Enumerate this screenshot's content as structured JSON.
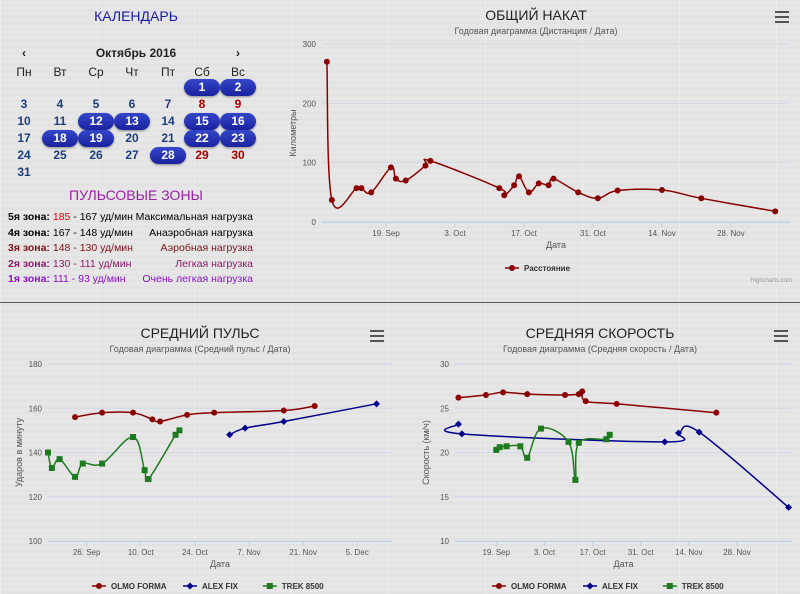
{
  "calendar": {
    "title": "КАЛЕНДАРЬ",
    "month": "Октябрь 2016",
    "prev": "‹",
    "next": "›",
    "weekdays": [
      "Пн",
      "Вт",
      "Ср",
      "Чт",
      "Пт",
      "Сб",
      "Вс"
    ],
    "weeks": [
      [
        "",
        "",
        "",
        "",
        "",
        "1",
        "2"
      ],
      [
        "3",
        "4",
        "5",
        "6",
        "7",
        "8",
        "9"
      ],
      [
        "10",
        "11",
        "12",
        "13",
        "14",
        "15",
        "16"
      ],
      [
        "17",
        "18",
        "19",
        "20",
        "21",
        "22",
        "23"
      ],
      [
        "24",
        "25",
        "26",
        "27",
        "28",
        "29",
        "30"
      ],
      [
        "31",
        "",
        "",
        "",
        "",
        "",
        ""
      ]
    ],
    "active_days": [
      "1",
      "2",
      "12",
      "13",
      "15",
      "16",
      "18",
      "19",
      "22",
      "23",
      "28"
    ]
  },
  "zones": {
    "title": "ПУЛЬСОВЫЕ ЗОНЫ",
    "items": [
      {
        "label": "5я зона:",
        "hi": "185",
        "lo": "167 уд/мин",
        "desc": "Максимальная нагрузка",
        "color": "#000000",
        "hi_color": "#e00000"
      },
      {
        "label": "4я зона:",
        "hi": "167",
        "lo": "148 уд/мин",
        "desc": "Анаэробная нагрузка",
        "color": "#000000",
        "hi_color": "#000000"
      },
      {
        "label": "3я зона:",
        "hi": "148",
        "lo": "130 уд/мин",
        "desc": "Аэробная нагрузка",
        "color": "#7a1020",
        "hi_color": "#7a1020"
      },
      {
        "label": "2я зона:",
        "hi": "130",
        "lo": "111 уд/мин",
        "desc": "Легкая нагрузка",
        "color": "#8a1a6a",
        "hi_color": "#8a1a6a"
      },
      {
        "label": "1я зона:",
        "hi": "111",
        "lo": "93 уд/мин",
        "desc": "Очень легкая нагрузка",
        "color": "#8a10c0",
        "hi_color": "#8a10c0"
      }
    ]
  },
  "credits": "Highcharts.com",
  "chart_data": [
    {
      "id": "total",
      "type": "line",
      "title": "ОБЩИЙ НАКАТ",
      "subtitle": "Годовая диаграмма (Дистанция / Дата)",
      "xlabel": "Дата",
      "ylabel": "Километры",
      "ylim": [
        0,
        300
      ],
      "yticks": [
        0,
        100,
        200,
        300
      ],
      "xlim": [
        "2016-09-06",
        "2016-12-10"
      ],
      "xticks": [
        {
          "date": "2016-09-19",
          "label": "19. Sep"
        },
        {
          "date": "2016-10-03",
          "label": "3. Oct"
        },
        {
          "date": "2016-10-17",
          "label": "17. Oct"
        },
        {
          "date": "2016-10-31",
          "label": "31. Oct"
        },
        {
          "date": "2016-11-14",
          "label": "14. Nov"
        },
        {
          "date": "2016-11-28",
          "label": "28. Nov"
        }
      ],
      "grid": true,
      "legend": "bottom-center",
      "series": [
        {
          "name": "Расстояние",
          "color": "#8b0000",
          "points": [
            [
              "2016-09-07",
              270
            ],
            [
              "2016-09-08",
              37
            ],
            [
              "2016-09-13",
              57
            ],
            [
              "2016-09-14",
              57
            ],
            [
              "2016-09-16",
              50
            ],
            [
              "2016-09-20",
              92
            ],
            [
              "2016-09-21",
              73
            ],
            [
              "2016-09-23",
              70
            ],
            [
              "2016-09-27",
              95
            ],
            [
              "2016-09-28",
              103
            ],
            [
              "2016-10-12",
              57
            ],
            [
              "2016-10-13",
              45
            ],
            [
              "2016-10-15",
              62
            ],
            [
              "2016-10-16",
              77
            ],
            [
              "2016-10-18",
              50
            ],
            [
              "2016-10-20",
              65
            ],
            [
              "2016-10-22",
              62
            ],
            [
              "2016-10-23",
              73
            ],
            [
              "2016-10-28",
              50
            ],
            [
              "2016-11-01",
              40
            ],
            [
              "2016-11-05",
              53
            ],
            [
              "2016-11-14",
              54
            ],
            [
              "2016-11-22",
              40
            ],
            [
              "2016-12-07",
              18
            ]
          ]
        }
      ]
    },
    {
      "id": "pulse",
      "type": "line",
      "title": "СРЕДНИЙ ПУЛЬС",
      "subtitle": "Годовая диаграмма (Средний пульс / Дата)",
      "xlabel": "Дата",
      "ylabel": "Ударов в минуту",
      "ylim": [
        100,
        180
      ],
      "yticks": [
        100,
        120,
        140,
        160,
        180
      ],
      "xlim": [
        "2016-09-16",
        "2016-12-14"
      ],
      "xticks": [
        {
          "date": "2016-09-26",
          "label": "26. Sep"
        },
        {
          "date": "2016-10-10",
          "label": "10. Oct"
        },
        {
          "date": "2016-10-24",
          "label": "24. Oct"
        },
        {
          "date": "2016-11-07",
          "label": "7. Nov"
        },
        {
          "date": "2016-11-21",
          "label": "21. Nov"
        },
        {
          "date": "2016-12-05",
          "label": "5. Dec"
        }
      ],
      "grid": true,
      "legend": "bottom-center",
      "series": [
        {
          "name": "OLMO FORMA",
          "color": "#8b0000",
          "marker": "circle",
          "points": [
            [
              "2016-09-23",
              156
            ],
            [
              "2016-09-30",
              158
            ],
            [
              "2016-10-08",
              158
            ],
            [
              "2016-10-13",
              155
            ],
            [
              "2016-10-15",
              154
            ],
            [
              "2016-10-22",
              157
            ],
            [
              "2016-10-29",
              158
            ],
            [
              "2016-11-16",
              159
            ],
            [
              "2016-11-24",
              161
            ]
          ]
        },
        {
          "name": "ALEX FIX",
          "color": "#00008b",
          "marker": "diamond",
          "points": [
            [
              "2016-11-02",
              148
            ],
            [
              "2016-11-06",
              151
            ],
            [
              "2016-11-16",
              154
            ],
            [
              "2016-12-10",
              162
            ]
          ]
        },
        {
          "name": "TREK 8500",
          "color": "#1e7a1e",
          "marker": "square",
          "points": [
            [
              "2016-09-16",
              140
            ],
            [
              "2016-09-17",
              133
            ],
            [
              "2016-09-19",
              137
            ],
            [
              "2016-09-23",
              129
            ],
            [
              "2016-09-25",
              135
            ],
            [
              "2016-09-30",
              135
            ],
            [
              "2016-10-08",
              147
            ],
            [
              "2016-10-11",
              132
            ],
            [
              "2016-10-12",
              128
            ],
            [
              "2016-10-19",
              148
            ],
            [
              "2016-10-20",
              150
            ]
          ]
        }
      ]
    },
    {
      "id": "speed",
      "type": "line",
      "title": "СРЕДНЯЯ СКОРОСТЬ",
      "subtitle": "Годовая диаграмма (Средняя скорость / Дата)",
      "xlabel": "Дата",
      "ylabel": "Скорость (км/ч)",
      "ylim": [
        10,
        30
      ],
      "yticks": [
        10,
        15,
        20,
        25,
        30
      ],
      "xlim": [
        "2016-09-07",
        "2016-12-14"
      ],
      "xticks": [
        {
          "date": "2016-09-19",
          "label": "19. Sep"
        },
        {
          "date": "2016-10-03",
          "label": "3. Oct"
        },
        {
          "date": "2016-10-17",
          "label": "17. Oct"
        },
        {
          "date": "2016-10-31",
          "label": "31. Oct"
        },
        {
          "date": "2016-11-14",
          "label": "14. Nov"
        },
        {
          "date": "2016-11-28",
          "label": "28. Nov"
        }
      ],
      "grid": true,
      "legend": "bottom-center",
      "series": [
        {
          "name": "OLMO FORMA",
          "color": "#8b0000",
          "marker": "circle",
          "points": [
            [
              "2016-09-08",
              26.2
            ],
            [
              "2016-09-16",
              26.5
            ],
            [
              "2016-09-21",
              26.8
            ],
            [
              "2016-09-28",
              26.6
            ],
            [
              "2016-10-09",
              26.5
            ],
            [
              "2016-10-13",
              26.6
            ],
            [
              "2016-10-14",
              26.9
            ],
            [
              "2016-10-15",
              25.8
            ],
            [
              "2016-10-24",
              25.5
            ],
            [
              "2016-11-22",
              24.5
            ]
          ]
        },
        {
          "name": "ALEX FIX",
          "color": "#00008b",
          "marker": "diamond",
          "points": [
            [
              "2016-09-08",
              23.2
            ],
            [
              "2016-09-09",
              22.1
            ],
            [
              "2016-11-07",
              21.2
            ],
            [
              "2016-11-11",
              22.2
            ],
            [
              "2016-11-17",
              22.3
            ],
            [
              "2016-12-13",
              13.8
            ]
          ]
        },
        {
          "name": "TREK 8500",
          "color": "#1e7a1e",
          "marker": "square",
          "points": [
            [
              "2016-09-19",
              20.3
            ],
            [
              "2016-09-20",
              20.6
            ],
            [
              "2016-09-22",
              20.7
            ],
            [
              "2016-09-26",
              20.7
            ],
            [
              "2016-09-28",
              19.4
            ],
            [
              "2016-10-02",
              22.7
            ],
            [
              "2016-10-10",
              21.2
            ],
            [
              "2016-10-12",
              16.9
            ],
            [
              "2016-10-13",
              21.1
            ],
            [
              "2016-10-21",
              21.5
            ],
            [
              "2016-10-22",
              22.0
            ]
          ]
        }
      ]
    }
  ]
}
